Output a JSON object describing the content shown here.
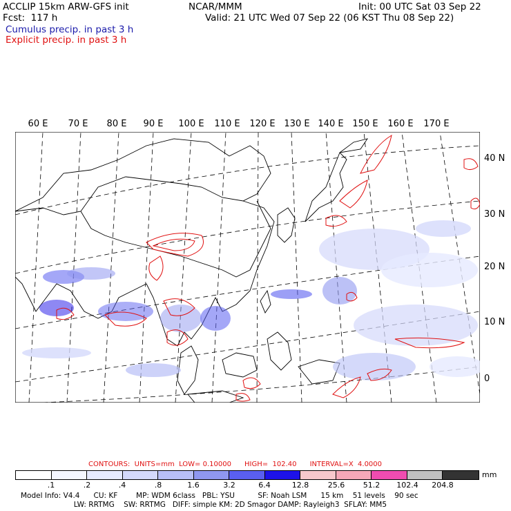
{
  "header": {
    "model": "ACCLIP 15km ARW-GFS init",
    "forecast": "Fcst:  117 h",
    "org": "NCAR/MMM",
    "init": "Init: 00 UTC Sat 03 Sep 22",
    "valid": "Valid: 21 UTC Wed 07 Sep 22 (06 KST Thu 08 Sep 22)",
    "cumulus": "Cumulus precip. in past 3 h",
    "explicit": "Explicit precip. in past 3 h"
  },
  "map": {
    "lon_labels": [
      "60 E",
      "70 E",
      "80 E",
      "90 E",
      "100 E",
      "110 E",
      "120 E",
      "130 E",
      "140 E",
      "150 E",
      "160 E",
      "170 E"
    ],
    "lat_labels": [
      "40 N",
      "30 N",
      "20 N",
      "10 N",
      "0"
    ]
  },
  "contours": {
    "text": "CONTOURS:  UNITS=mm  LOW= 0.10000      HIGH=  102.40      INTERVAL=X  4.0000"
  },
  "colorbar": {
    "colors": [
      "#ffffff",
      "#f4f6ff",
      "#e6eaff",
      "#d4d9fb",
      "#b8bff6",
      "#8f97f0",
      "#5a5ff0",
      "#1d12e8",
      "#f7c8cc",
      "#f5a8b8",
      "#f04cb0",
      "#c0c0c0",
      "#333333",
      "#cc99ff"
    ],
    "ticks": [
      ".1",
      ".2",
      ".4",
      ".8",
      "1.6",
      "3.2",
      "6.4",
      "12.8",
      "25.6",
      "51.2",
      "102.4",
      "204.8"
    ],
    "units": "mm"
  },
  "footer": {
    "line1": "Model Info: V4.4      CU: KF        MP: WDM 6class   PBL: YSU          SF: Noah LSM      15 km    51 levels    90 sec",
    "line2": "                       LW: RRTMG    SW: RRTMG   DIFF: simple KM: 2D Smagor DAMP: Rayleigh3  SFLAY: MM5"
  }
}
